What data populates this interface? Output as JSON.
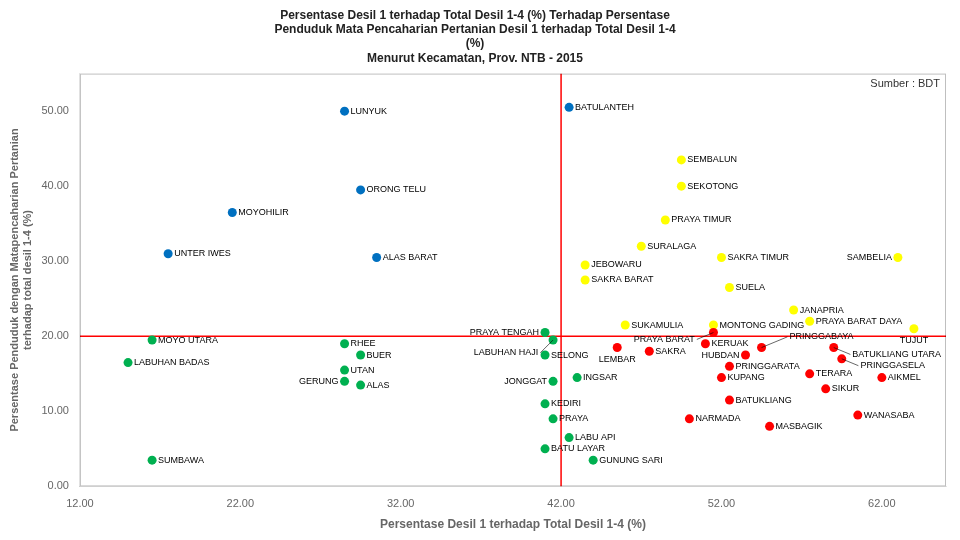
{
  "chart_data": {
    "type": "scatter",
    "title": "Persentase Desil 1 terhadap Total Desil 1-4 (%) Terhadap Persentase\nPenduduk Mata Pencaharian Pertanian Desil 1 terhadap Total Desil 1-4\n(%)\nMenurut Kecamatan, Prov. NTB - 2015",
    "xlabel": "Persentase Desil 1 terhadap Total Desil 1-4 (%)",
    "ylabel": "Persentase Penduduk dengan Matapencaharian Pertanian\nterhadap total desil 1-4 (%)",
    "point_labels": [
      "BATULANTEH",
      "LUNYUK",
      "ORONG TELU",
      "MOYOHILIR",
      "UNTER IWES",
      "ALAS BARAT",
      "MOYO UTARA",
      "LABUHAN BADAS",
      "SUMBAWA",
      "RHEE",
      "BUER",
      "UTAN",
      "GERUNG",
      "ALAS",
      "PRAYA TENGAH",
      "LABUHAN HAJI",
      "SELONG",
      "JONGGAT",
      "KEDIRI",
      "PRAYA",
      "BATU LAYAR",
      "LABU API",
      "GUNUNG SARI",
      "INGSAR",
      "SEMBALUN",
      "SEKOTONG",
      "PRAYA TIMUR",
      "SURALAGA",
      "SAKRA TIMUR",
      "SAMBELIA",
      "JEBOWARU",
      "SAKRA BARAT",
      "SUELA",
      "JANAPRIA",
      "PRAYA BARAT DAYA",
      "TUJUT",
      "SUKAMULIA",
      "MONTONG GADING",
      "PRAYA BARAT",
      "KERUAK",
      "LEMBAR",
      "SAKRA",
      "PRINGGABAYA",
      "BATUKLIANG UTARA",
      "HUBDAN",
      "PRINGGARATA",
      "PRINGGASELA",
      "TERARA",
      "AIKMEL",
      "KUPANG",
      "SIKUR",
      "BATUKLIANG",
      "NARMADA",
      "MASBAGIK",
      "WANASABA"
    ],
    "x": [
      42.5,
      28.5,
      29.5,
      21.5,
      17.5,
      30.5,
      16.5,
      15.0,
      16.5,
      28.5,
      29.5,
      28.5,
      28.5,
      29.5,
      41.0,
      41.5,
      41.0,
      41.5,
      41.0,
      41.5,
      41.0,
      42.5,
      44.0,
      43.0,
      49.5,
      49.5,
      48.5,
      47.0,
      52.0,
      63.0,
      43.5,
      43.5,
      52.5,
      56.5,
      57.5,
      64.0,
      46.0,
      51.5,
      51.5,
      51.0,
      45.5,
      47.5,
      54.5,
      59.0,
      53.5,
      52.5,
      59.5,
      57.5,
      62.0,
      52.0,
      58.5,
      52.5,
      50.0,
      55.0,
      60.5
    ],
    "values": [
      50.5,
      50.0,
      39.5,
      36.5,
      31.0,
      30.5,
      19.5,
      16.5,
      3.5,
      19.0,
      17.5,
      15.5,
      14.0,
      13.5,
      20.5,
      19.5,
      17.5,
      14.0,
      11.0,
      9.0,
      5.0,
      6.5,
      3.5,
      14.5,
      43.5,
      40.0,
      35.5,
      32.0,
      30.5,
      30.5,
      29.5,
      27.5,
      26.5,
      23.5,
      22.0,
      21.0,
      21.5,
      21.5,
      20.5,
      19.0,
      18.5,
      18.0,
      18.5,
      18.5,
      17.5,
      16.0,
      17.0,
      15.0,
      14.5,
      14.5,
      13.0,
      11.5,
      9.0,
      8.0,
      9.5
    ],
    "colors": [
      "#0070C0",
      "#0070C0",
      "#0070C0",
      "#0070C0",
      "#0070C0",
      "#0070C0",
      "#00B050",
      "#00B050",
      "#00B050",
      "#00B050",
      "#00B050",
      "#00B050",
      "#00B050",
      "#00B050",
      "#00B050",
      "#00B050",
      "#00B050",
      "#00B050",
      "#00B050",
      "#00B050",
      "#00B050",
      "#00B050",
      "#00B050",
      "#00B050",
      "#FFFF00",
      "#FFFF00",
      "#FFFF00",
      "#FFFF00",
      "#FFFF00",
      "#FFFF00",
      "#FFFF00",
      "#FFFF00",
      "#FFFF00",
      "#FFFF00",
      "#FFFF00",
      "#FFFF00",
      "#FFFF00",
      "#FFFF00",
      "#FF0000",
      "#FF0000",
      "#FF0000",
      "#FF0000",
      "#FF0000",
      "#FF0000",
      "#FF0000",
      "#FF0000",
      "#FF0000",
      "#FF0000",
      "#FF0000",
      "#FF0000",
      "#FF0000",
      "#FF0000",
      "#FF0000",
      "#FF0000",
      "#FF0000"
    ],
    "reference_lines": [
      {
        "axis": "x",
        "value": 42.0,
        "color": "#FF0000"
      },
      {
        "axis": "y",
        "value": 20.0,
        "color": "#FF0000"
      }
    ],
    "annotations": [
      {
        "text": "Sumber : BDT"
      }
    ],
    "xlim": [
      12,
      66
    ],
    "ylim": [
      0,
      55
    ],
    "xticks": [
      {
        "value": 12,
        "label": "12.00"
      },
      {
        "value": 22,
        "label": "22.00"
      },
      {
        "value": 32,
        "label": "32.00"
      },
      {
        "value": 42,
        "label": "42.00"
      },
      {
        "value": 52,
        "label": "52.00"
      },
      {
        "value": 62,
        "label": "62.00"
      }
    ],
    "yticks": [
      {
        "value": 0,
        "label": "0.00"
      },
      {
        "value": 10,
        "label": "10.00"
      },
      {
        "value": 20,
        "label": "20.00"
      },
      {
        "value": 30,
        "label": "30.00"
      },
      {
        "value": 40,
        "label": "40.00"
      },
      {
        "value": 50,
        "label": "50.00"
      }
    ],
    "grid": false
  }
}
